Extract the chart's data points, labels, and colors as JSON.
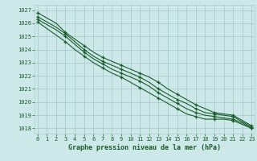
{
  "title": "Graphe pression niveau de la mer (hPa)",
  "bg_color": "#cce8e8",
  "grid_color": "#aacccc",
  "line_color": "#1a5c2a",
  "spine_color": "#aacccc",
  "x_ticks": [
    0,
    1,
    2,
    3,
    4,
    5,
    6,
    7,
    8,
    9,
    10,
    11,
    12,
    13,
    14,
    15,
    16,
    17,
    18,
    19,
    20,
    21,
    22,
    23
  ],
  "xlim": [
    -0.3,
    23.3
  ],
  "ylim": [
    1017.6,
    1027.4
  ],
  "yticks": [
    1018,
    1019,
    1020,
    1021,
    1022,
    1023,
    1024,
    1025,
    1026,
    1027
  ],
  "marker_x": [
    0,
    3,
    5,
    7,
    9,
    11,
    13,
    15,
    17,
    19,
    21,
    23
  ],
  "series": [
    [
      1026.8,
      1026.4,
      1026.0,
      1025.3,
      1024.8,
      1024.3,
      1023.8,
      1023.4,
      1023.1,
      1022.8,
      1022.5,
      1022.2,
      1021.9,
      1021.5,
      1021.0,
      1020.6,
      1020.2,
      1019.8,
      1019.5,
      1019.2,
      1019.1,
      1019.0,
      1018.6,
      1018.2
    ],
    [
      1026.5,
      1026.1,
      1025.7,
      1025.2,
      1024.6,
      1024.0,
      1023.5,
      1023.1,
      1022.8,
      1022.5,
      1022.2,
      1021.9,
      1021.5,
      1021.0,
      1020.6,
      1020.2,
      1019.9,
      1019.5,
      1019.2,
      1019.1,
      1019.0,
      1018.9,
      1018.5,
      1018.1
    ],
    [
      1026.3,
      1025.9,
      1025.5,
      1025.0,
      1024.4,
      1023.8,
      1023.3,
      1022.9,
      1022.5,
      1022.2,
      1021.9,
      1021.6,
      1021.2,
      1020.7,
      1020.3,
      1019.9,
      1019.5,
      1019.2,
      1019.0,
      1018.9,
      1018.8,
      1018.7,
      1018.4,
      1018.0
    ],
    [
      1026.1,
      1025.6,
      1025.1,
      1024.6,
      1024.0,
      1023.5,
      1023.0,
      1022.6,
      1022.2,
      1021.9,
      1021.5,
      1021.1,
      1020.7,
      1020.3,
      1019.9,
      1019.5,
      1019.1,
      1018.9,
      1018.7,
      1018.7,
      1018.7,
      1018.6,
      1018.3,
      1018.0
    ]
  ],
  "title_fontsize": 6.0,
  "tick_fontsize": 5.0,
  "linewidth": 0.8,
  "markersize": 3.5
}
